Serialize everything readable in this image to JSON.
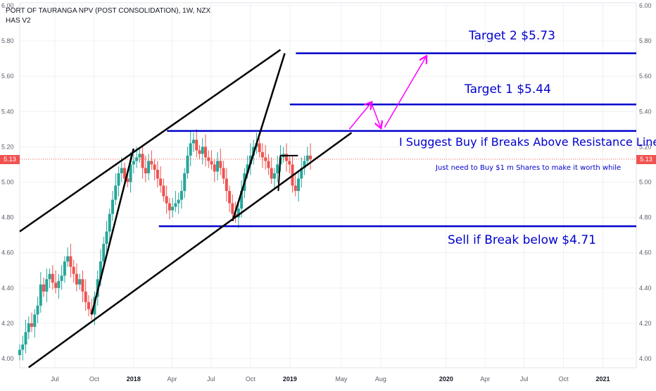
{
  "header": {
    "title": "PORT OF TAURANGA NPV (POST CONSOLIDATION), 1W, NZX",
    "indicator": "HAS V2"
  },
  "last_price_label": "5.13",
  "annotations": {
    "target2": "Target 2 $5.73",
    "target1": "Target 1 $5.44",
    "suggest": "I Suggest Buy if Breaks Above Resistance Line",
    "note": "Just need to Buy $1 m Shares to make it worth while",
    "sell": "Sell if Break below  $4.71"
  },
  "colors": {
    "up": "#26a69a",
    "down": "#ef5350",
    "level_lines": "#0000cc",
    "trend_lines": "#000000",
    "arrows": "#ff00ff",
    "last_price": "#ef5350"
  },
  "chart_data": {
    "type": "candlestick",
    "title": "PORT OF TAURANGA NPV (POST CONSOLIDATION), 1W, NZX",
    "ylim": [
      4.0,
      6.0
    ],
    "y_ticks": [
      "4.00",
      "4.20",
      "4.40",
      "4.60",
      "4.80",
      "5.00",
      "5.20",
      "5.40",
      "5.60",
      "5.80",
      "6.00"
    ],
    "x_ticks": [
      {
        "label": "Jul",
        "date": "2017-07-01"
      },
      {
        "label": "Oct",
        "date": "2017-10-01"
      },
      {
        "label": "2018",
        "date": "2018-01-01",
        "bold": true
      },
      {
        "label": "Apr",
        "date": "2018-04-01"
      },
      {
        "label": "Jul",
        "date": "2018-07-01"
      },
      {
        "label": "Oct",
        "date": "2018-10-01"
      },
      {
        "label": "2019",
        "date": "2019-01-01",
        "bold": true
      },
      {
        "label": "May",
        "date": "2019-05-01"
      },
      {
        "label": "Aug",
        "date": "2019-08-01"
      },
      {
        "label": "2020",
        "date": "2020-01-01",
        "bold": true
      },
      {
        "label": "Apr",
        "date": "2020-04-01"
      },
      {
        "label": "Jul",
        "date": "2020-07-01"
      },
      {
        "label": "Oct",
        "date": "2020-10-01"
      },
      {
        "label": "2021",
        "date": "2021-01-01",
        "bold": true
      }
    ],
    "x_range": [
      "2017-04-10",
      "2021-03-20"
    ],
    "grid": true,
    "last_price": 5.13,
    "weekly_closes": [
      4.05,
      4.08,
      4.15,
      4.2,
      4.18,
      4.25,
      4.3,
      4.42,
      4.38,
      4.45,
      4.48,
      4.43,
      4.4,
      4.44,
      4.47,
      4.55,
      4.58,
      4.52,
      4.48,
      4.42,
      4.45,
      4.38,
      4.32,
      4.28,
      4.25,
      4.35,
      4.45,
      4.55,
      4.65,
      4.72,
      4.82,
      4.9,
      4.98,
      5.05,
      5.08,
      5.02,
      5.0,
      5.1,
      5.12,
      5.14,
      5.16,
      5.08,
      5.05,
      5.12,
      5.1,
      5.07,
      5.02,
      4.98,
      4.92,
      4.88,
      4.84,
      4.86,
      4.88,
      4.9,
      4.95,
      5.05,
      5.15,
      5.22,
      5.24,
      5.18,
      5.16,
      5.2,
      5.14,
      5.12,
      5.1,
      5.06,
      5.12,
      5.08,
      5.02,
      4.95,
      4.88,
      4.82,
      4.8,
      4.85,
      4.95,
      5.05,
      5.1,
      5.15,
      5.2,
      5.22,
      5.17,
      5.14,
      5.12,
      5.08,
      5.02,
      5.05,
      5.1,
      5.14,
      5.16,
      5.12,
      5.1,
      4.98,
      4.95,
      5.02,
      5.08,
      5.12,
      5.15,
      5.13
    ],
    "weekly_start": "2017-04-10",
    "levels": [
      {
        "name": "Target 2",
        "value": 5.73
      },
      {
        "name": "Target 1",
        "value": 5.44
      },
      {
        "name": "Resistance",
        "value": 5.29
      },
      {
        "name": "Support",
        "value": 4.75
      }
    ]
  }
}
